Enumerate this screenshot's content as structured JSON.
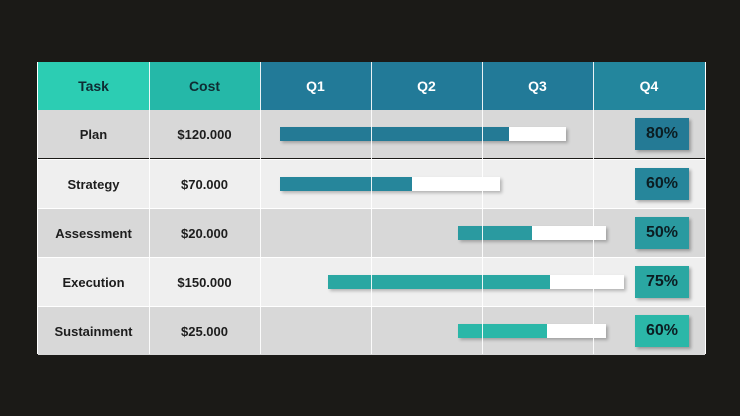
{
  "chart_data": {
    "type": "table",
    "columns": [
      "Task",
      "Cost",
      "Q1",
      "Q2",
      "Q3",
      "Q4"
    ],
    "rows": [
      {
        "task": "Plan",
        "cost": "$120.000",
        "start": 0.18,
        "end": 2.76,
        "progress": 80,
        "progress_label": "80%",
        "color": "#247a95"
      },
      {
        "task": "Strategy",
        "cost": "$70.000",
        "start": 0.18,
        "end": 2.16,
        "progress": 60,
        "progress_label": "60%",
        "color": "#26869b"
      },
      {
        "task": "Assessment",
        "cost": "$20.000",
        "start": 1.78,
        "end": 3.12,
        "progress": 50,
        "progress_label": "50%",
        "color": "#2a9aa0"
      },
      {
        "task": "Execution",
        "cost": "$150.000",
        "start": 0.61,
        "end": 3.28,
        "progress": 75,
        "progress_label": "75%",
        "color": "#2aa7a2"
      },
      {
        "task": "Sustainment",
        "cost": "$25.000",
        "start": 1.78,
        "end": 3.12,
        "progress": 60,
        "progress_label": "60%",
        "color": "#2bb7a8"
      }
    ]
  },
  "colors": {
    "header_task": "#2ccdb3",
    "header_cost": "#25b8a8",
    "header_quarters": "#227a98",
    "header_q4": "#23869d",
    "row_dark": "#d8d8d8",
    "row_light": "#efefef"
  }
}
